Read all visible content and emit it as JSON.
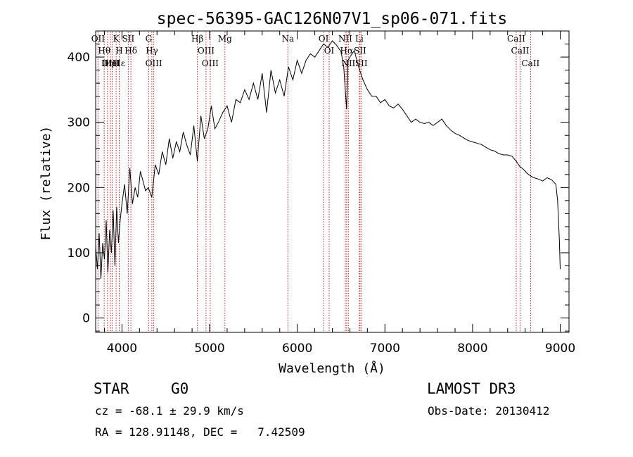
{
  "chart_data": {
    "type": "line",
    "title": "spec-56395-GAC126N07V1_sp06-071.fits",
    "xlabel": "Wavelength (Å)",
    "ylabel": "Flux (relative)",
    "xlim": [
      3700,
      9100
    ],
    "ylim": [
      -22,
      440
    ],
    "xticks": [
      4000,
      5000,
      6000,
      7000,
      8000,
      9000
    ],
    "xtick_labels": [
      "4000",
      "5000",
      "6000",
      "7000",
      "8000",
      "9000"
    ],
    "yticks": [
      0,
      100,
      200,
      300,
      400
    ],
    "ytick_labels": [
      "0",
      "100",
      "200",
      "300",
      "400"
    ],
    "series": [
      {
        "name": "flux",
        "x": [
          3700,
          3720,
          3740,
          3760,
          3780,
          3800,
          3820,
          3840,
          3860,
          3880,
          3900,
          3920,
          3940,
          3960,
          3980,
          4000,
          4030,
          4060,
          4090,
          4120,
          4150,
          4180,
          4210,
          4240,
          4270,
          4300,
          4340,
          4380,
          4420,
          4460,
          4500,
          4540,
          4580,
          4620,
          4660,
          4700,
          4740,
          4780,
          4820,
          4860,
          4900,
          4940,
          4980,
          5020,
          5060,
          5100,
          5150,
          5200,
          5250,
          5300,
          5350,
          5400,
          5450,
          5500,
          5550,
          5600,
          5650,
          5700,
          5750,
          5800,
          5850,
          5900,
          5950,
          6000,
          6050,
          6100,
          6150,
          6200,
          6250,
          6300,
          6350,
          6400,
          6450,
          6500,
          6530,
          6563,
          6580,
          6600,
          6650,
          6700,
          6750,
          6800,
          6850,
          6900,
          6950,
          7000,
          7050,
          7100,
          7150,
          7200,
          7250,
          7300,
          7350,
          7400,
          7450,
          7500,
          7550,
          7600,
          7650,
          7700,
          7750,
          7800,
          7850,
          7900,
          7950,
          8000,
          8050,
          8100,
          8150,
          8200,
          8250,
          8300,
          8350,
          8400,
          8450,
          8500,
          8540,
          8580,
          8620,
          8660,
          8700,
          8750,
          8800,
          8850,
          8900,
          8950,
          8970,
          8990,
          9000
        ],
        "values": [
          110,
          75,
          130,
          60,
          115,
          90,
          150,
          70,
          135,
          100,
          165,
          80,
          170,
          115,
          150,
          175,
          205,
          160,
          230,
          175,
          200,
          185,
          225,
          210,
          195,
          200,
          185,
          235,
          220,
          255,
          235,
          275,
          245,
          270,
          255,
          285,
          265,
          250,
          295,
          240,
          310,
          275,
          290,
          325,
          290,
          300,
          315,
          325,
          300,
          335,
          330,
          350,
          335,
          360,
          335,
          375,
          315,
          380,
          345,
          365,
          340,
          385,
          365,
          395,
          375,
          395,
          405,
          400,
          410,
          420,
          415,
          425,
          418,
          408,
          385,
          320,
          395,
          400,
          410,
          385,
          365,
          350,
          340,
          340,
          330,
          335,
          325,
          322,
          328,
          320,
          310,
          300,
          305,
          300,
          298,
          300,
          295,
          300,
          305,
          295,
          288,
          283,
          280,
          276,
          272,
          270,
          268,
          266,
          262,
          258,
          256,
          252,
          250,
          250,
          248,
          240,
          232,
          228,
          222,
          218,
          215,
          213,
          210,
          215,
          212,
          205,
          180,
          120,
          75
        ]
      }
    ],
    "lines": [
      "Hθ",
      "OII",
      "Hε",
      "OIII",
      "K",
      "H",
      "Hη",
      "HeI",
      "SII",
      "Hδ",
      "OIII",
      "Hγ",
      "G",
      "Hβ",
      "OIII",
      "OIII",
      "Mg",
      "Na",
      "OI",
      "OI",
      "Hα",
      "NII",
      "NII",
      "SII",
      "Li",
      "SII",
      "CaII",
      "CaII",
      "CaII"
    ],
    "line_wavelengths": [
      3798,
      3727,
      3970,
      3869,
      3934,
      3969,
      3835,
      3889,
      4072,
      4102,
      4363,
      4341,
      4305,
      4861,
      4959,
      5007,
      5175,
      5893,
      6300,
      6364,
      6563,
      6548,
      6583,
      6716,
      6708,
      6731,
      8498,
      8542,
      8662
    ]
  },
  "info": {
    "object_class": "STAR",
    "subclass": "G0",
    "survey": "LAMOST DR3",
    "cz_line": "cz = -68.1 ± 29.9 km/s",
    "obs_date": "Obs-Date: 20130412",
    "coords": "RA = 128.91148, DEC =   7.42509"
  }
}
